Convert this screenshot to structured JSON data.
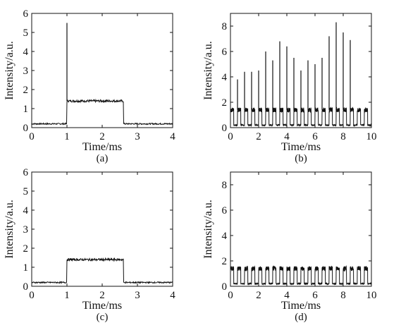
{
  "chart_data": [
    {
      "type": "line",
      "caption": "(a)",
      "xlabel": "Time/ms",
      "ylabel": "Intensity/a.u.",
      "xlim": [
        0,
        4
      ],
      "ylim": [
        0,
        6
      ],
      "xticks": [
        "0",
        "1",
        "2",
        "3",
        "4"
      ],
      "yticks": [
        "0",
        "1",
        "2",
        "3",
        "4",
        "5",
        "6"
      ],
      "grid": false,
      "baseline": 0.2,
      "pulse": {
        "start": 1.0,
        "end": 2.6,
        "level": 1.4
      },
      "spikes": [
        {
          "x": 1.0,
          "y": 5.5
        }
      ]
    },
    {
      "type": "line",
      "caption": "(b)",
      "xlabel": "Time/ms",
      "ylabel": "Intensity/a.u.",
      "xlim": [
        0,
        10
      ],
      "ylim": [
        0,
        9
      ],
      "xticks": [
        "0",
        "2",
        "4",
        "6",
        "8",
        "10"
      ],
      "yticks": [
        "0",
        "2",
        "4",
        "6",
        "8"
      ],
      "grid": false,
      "period_ms": 0.5,
      "high_level": 1.4,
      "low_level": 0.2,
      "spikes": [
        {
          "x": 0.5,
          "y": 3.8
        },
        {
          "x": 1.0,
          "y": 4.4
        },
        {
          "x": 1.5,
          "y": 4.4
        },
        {
          "x": 2.0,
          "y": 4.5
        },
        {
          "x": 2.5,
          "y": 6.0
        },
        {
          "x": 3.0,
          "y": 5.3
        },
        {
          "x": 3.5,
          "y": 6.8
        },
        {
          "x": 4.0,
          "y": 6.4
        },
        {
          "x": 4.5,
          "y": 5.5
        },
        {
          "x": 5.0,
          "y": 4.5
        },
        {
          "x": 5.5,
          "y": 5.3
        },
        {
          "x": 6.0,
          "y": 5.0
        },
        {
          "x": 6.5,
          "y": 5.5
        },
        {
          "x": 7.0,
          "y": 7.2
        },
        {
          "x": 7.5,
          "y": 8.3
        },
        {
          "x": 8.0,
          "y": 7.5
        },
        {
          "x": 8.5,
          "y": 6.9
        }
      ]
    },
    {
      "type": "line",
      "caption": "(c)",
      "xlabel": "Time/ms",
      "ylabel": "Intensity/a.u.",
      "xlim": [
        0,
        4
      ],
      "ylim": [
        0,
        6
      ],
      "xticks": [
        "0",
        "1",
        "2",
        "3",
        "4"
      ],
      "yticks": [
        "0",
        "1",
        "2",
        "3",
        "4",
        "5",
        "6"
      ],
      "grid": false,
      "baseline": 0.2,
      "pulse": {
        "start": 1.0,
        "end": 2.6,
        "level": 1.4
      },
      "spikes": []
    },
    {
      "type": "line",
      "caption": "(d)",
      "xlabel": "Time/ms",
      "ylabel": "Intensity/a.u.",
      "xlim": [
        0,
        10
      ],
      "ylim": [
        0,
        9
      ],
      "xticks": [
        "0",
        "2",
        "4",
        "6",
        "8",
        "10"
      ],
      "yticks": [
        "0",
        "2",
        "4",
        "6",
        "8"
      ],
      "grid": false,
      "period_ms": 0.5,
      "high_level": 1.4,
      "low_level": 0.2,
      "spikes": []
    }
  ],
  "colors": {
    "line": "#111111",
    "axis": "#111111",
    "background": "#ffffff"
  }
}
